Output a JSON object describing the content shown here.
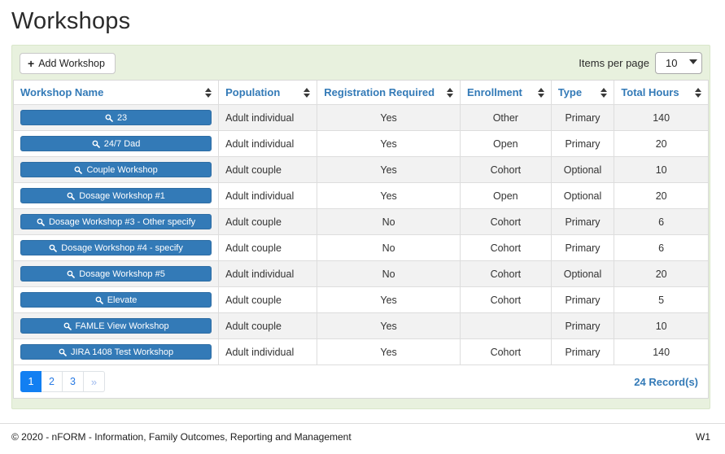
{
  "page": {
    "title": "Workshops"
  },
  "toolbar": {
    "add_label": "Add Workshop",
    "items_per_page_label": "Items per page",
    "items_per_page_value": "10"
  },
  "table": {
    "columns": [
      {
        "label": "Workshop Name",
        "align": "center"
      },
      {
        "label": "Population",
        "align": "left"
      },
      {
        "label": "Registration Required",
        "align": "center"
      },
      {
        "label": "Enrollment",
        "align": "center"
      },
      {
        "label": "Type",
        "align": "center"
      },
      {
        "label": "Total Hours",
        "align": "center"
      }
    ],
    "rows": [
      {
        "workshop_name": "23",
        "population": "Adult individual",
        "registration_required": "Yes",
        "enrollment": "Other",
        "type": "Primary",
        "total_hours": "140"
      },
      {
        "workshop_name": "24/7 Dad",
        "population": "Adult individual",
        "registration_required": "Yes",
        "enrollment": "Open",
        "type": "Primary",
        "total_hours": "20"
      },
      {
        "workshop_name": "Couple Workshop",
        "population": "Adult couple",
        "registration_required": "Yes",
        "enrollment": "Cohort",
        "type": "Optional",
        "total_hours": "10"
      },
      {
        "workshop_name": "Dosage Workshop #1",
        "population": "Adult individual",
        "registration_required": "Yes",
        "enrollment": "Open",
        "type": "Optional",
        "total_hours": "20"
      },
      {
        "workshop_name": "Dosage Workshop #3 - Other specify",
        "population": "Adult couple",
        "registration_required": "No",
        "enrollment": "Cohort",
        "type": "Primary",
        "total_hours": "6"
      },
      {
        "workshop_name": "Dosage Workshop #4 - specify",
        "population": "Adult couple",
        "registration_required": "No",
        "enrollment": "Cohort",
        "type": "Primary",
        "total_hours": "6"
      },
      {
        "workshop_name": "Dosage Workshop #5",
        "population": "Adult individual",
        "registration_required": "No",
        "enrollment": "Cohort",
        "type": "Optional",
        "total_hours": "20"
      },
      {
        "workshop_name": "Elevate",
        "population": "Adult couple",
        "registration_required": "Yes",
        "enrollment": "Cohort",
        "type": "Primary",
        "total_hours": "5"
      },
      {
        "workshop_name": "FAMLE View Workshop",
        "population": "Adult couple",
        "registration_required": "Yes",
        "enrollment": "",
        "type": "Primary",
        "total_hours": "10"
      },
      {
        "workshop_name": "JIRA 1408 Test Workshop",
        "population": "Adult individual",
        "registration_required": "Yes",
        "enrollment": "Cohort",
        "type": "Primary",
        "total_hours": "140"
      }
    ]
  },
  "pagination": {
    "pages": [
      "1",
      "2",
      "3"
    ],
    "active_page": "1",
    "next_label": "»",
    "records_label": "24 Record(s)"
  },
  "footer": {
    "copyright": "© 2020 - nFORM - Information, Family Outcomes, Reporting and Management",
    "version": "W1"
  },
  "colors": {
    "accent_blue": "#337ab7",
    "button_blue": "#337ab7",
    "active_page_blue": "#127ff2",
    "panel_green": "#e8f1de",
    "stripe_gray": "#f2f2f2"
  }
}
